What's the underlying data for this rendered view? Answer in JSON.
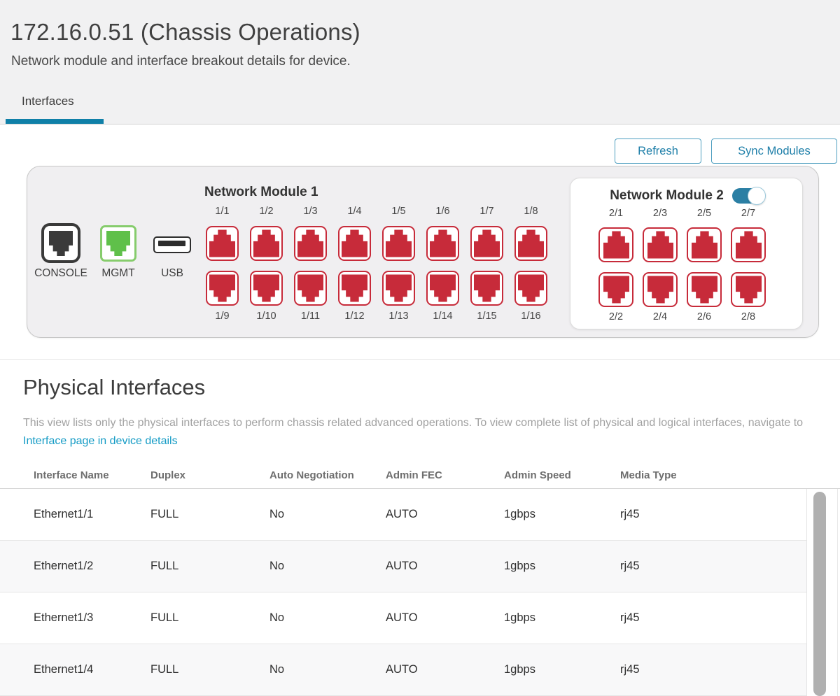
{
  "header": {
    "title": "172.16.0.51 (Chassis Operations)",
    "subtitle": "Network module and interface breakout details for device.",
    "tab_label": "Interfaces"
  },
  "toolbar": {
    "refresh_label": "Refresh",
    "sync_modules_label": "Sync Modules"
  },
  "chassis": {
    "console_label": "CONSOLE",
    "mgmt_label": "MGMT",
    "usb_label": "USB",
    "module1": {
      "title": "Network Module 1",
      "top_ports": [
        "1/1",
        "1/2",
        "1/3",
        "1/4",
        "1/5",
        "1/6",
        "1/7",
        "1/8"
      ],
      "bottom_ports": [
        "1/9",
        "1/10",
        "1/11",
        "1/12",
        "1/13",
        "1/14",
        "1/15",
        "1/16"
      ]
    },
    "module2": {
      "title": "Network Module 2",
      "toggle_on": true,
      "top_ports": [
        "2/1",
        "2/3",
        "2/5",
        "2/7"
      ],
      "bottom_ports": [
        "2/2",
        "2/4",
        "2/6",
        "2/8"
      ]
    }
  },
  "physical_interfaces": {
    "heading": "Physical Interfaces",
    "description": "This view lists only the physical interfaces to perform chassis related advanced operations. To view complete list of physical and logical interfaces, navigate to",
    "link_label": "Interface page in device details",
    "columns": [
      "Interface Name",
      "Duplex",
      "Auto Negotiation",
      "Admin FEC",
      "Admin Speed",
      "Media Type"
    ],
    "rows": [
      {
        "name": "Ethernet1/1",
        "duplex": "FULL",
        "auto_negotiation": "No",
        "admin_fec": "AUTO",
        "admin_speed": "1gbps",
        "media_type": "rj45"
      },
      {
        "name": "Ethernet1/2",
        "duplex": "FULL",
        "auto_negotiation": "No",
        "admin_fec": "AUTO",
        "admin_speed": "1gbps",
        "media_type": "rj45"
      },
      {
        "name": "Ethernet1/3",
        "duplex": "FULL",
        "auto_negotiation": "No",
        "admin_fec": "AUTO",
        "admin_speed": "1gbps",
        "media_type": "rj45"
      },
      {
        "name": "Ethernet1/4",
        "duplex": "FULL",
        "auto_negotiation": "No",
        "admin_fec": "AUTO",
        "admin_speed": "1gbps",
        "media_type": "rj45"
      }
    ]
  },
  "colors": {
    "accent_blue": "#1d7ea8",
    "tab_underline": "#1080a8",
    "link_teal": "#149bc5",
    "toggle_on": "#2b7fa4",
    "port_red": "#c72b3a",
    "console_dark": "#3a3a3a",
    "mgmt_green": "#5fc04a",
    "mgmt_green_border": "#86cc6c"
  }
}
